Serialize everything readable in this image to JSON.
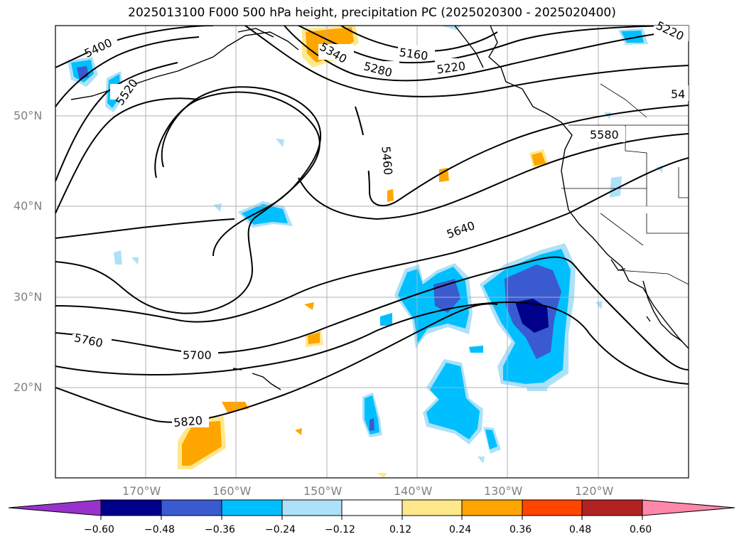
{
  "title": "2025013100 F000 500 hPa height, precipitation PC (2025020300 - 2025020400)",
  "lat_labels": [
    "50°N",
    "40°N",
    "30°N",
    "20°N"
  ],
  "lon_labels": [
    "170°W",
    "160°W",
    "150°W",
    "140°W",
    "130°W",
    "120°W"
  ],
  "contour_labels": [
    "5400",
    "5520",
    "5340",
    "5280",
    "5160",
    "5220",
    "5220",
    "54",
    "5460",
    "5580",
    "5640",
    "5700",
    "5760",
    "5820"
  ],
  "colorbar": {
    "ticks": [
      "−0.60",
      "−0.48",
      "−0.36",
      "−0.24",
      "−0.12",
      "0.12",
      "0.24",
      "0.36",
      "0.48",
      "0.60"
    ],
    "colors": [
      "#9932CC",
      "#00008B",
      "#3A5BCF",
      "#00BFFF",
      "#ADE1F7",
      "#FFFFFF",
      "#FFE88C",
      "#FFA500",
      "#FF4500",
      "#B22222",
      "#FF88AA"
    ]
  }
}
